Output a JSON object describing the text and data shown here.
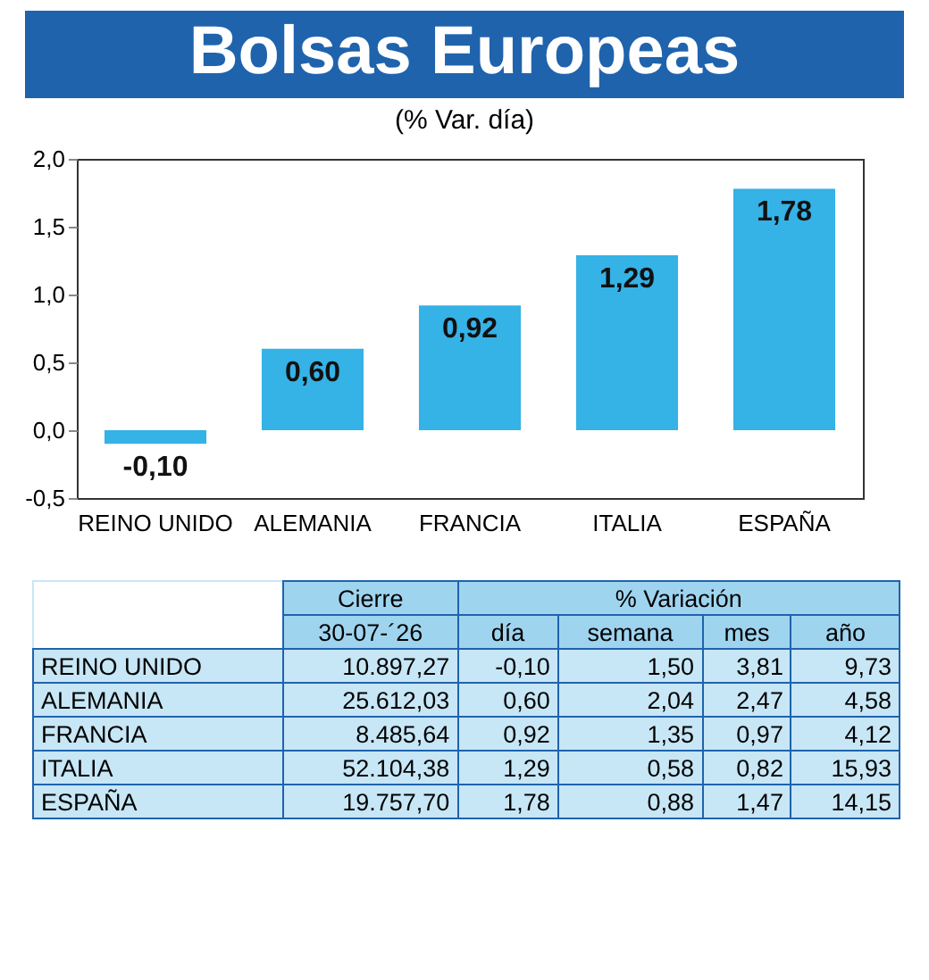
{
  "chart_data": {
    "type": "bar",
    "title": "Bolsas Europeas",
    "subtitle": "(% Var. día)",
    "categories": [
      "REINO UNIDO",
      "ALEMANIA",
      "FRANCIA",
      "ITALIA",
      "ESPAÑA"
    ],
    "values": [
      -0.1,
      0.6,
      0.92,
      1.29,
      1.78
    ],
    "value_labels": [
      "-0,10",
      "0,60",
      "0,92",
      "1,29",
      "1,78"
    ],
    "color": "#35b2e6",
    "ylim": [
      -0.5,
      2.0
    ],
    "yticks": [
      {
        "value": -0.5,
        "label": "-0,5"
      },
      {
        "value": 0,
        "label": "0,0"
      },
      {
        "value": 0.5,
        "label": "0,5"
      },
      {
        "value": 1.0,
        "label": "1,0"
      },
      {
        "value": 1.5,
        "label": "1,5"
      },
      {
        "value": 2.0,
        "label": "2,0"
      }
    ],
    "grid": false,
    "annotations": [
      "Cierre",
      "% Variación",
      "30-07-´26",
      "día",
      "semana",
      "mes",
      "año",
      "10.897,27",
      "-0,10",
      "1,50",
      "3,81",
      "9,73",
      "25.612,03",
      "0,60",
      "2,04",
      "2,47",
      "4,58",
      "8.485,64",
      "0,92",
      "1,35",
      "0,97",
      "4,12",
      "52.104,38",
      "1,29",
      "0,58",
      "0,82",
      "15,93",
      "19.757,70",
      "1,78",
      "0,88",
      "1,47",
      "14,15"
    ]
  }
}
